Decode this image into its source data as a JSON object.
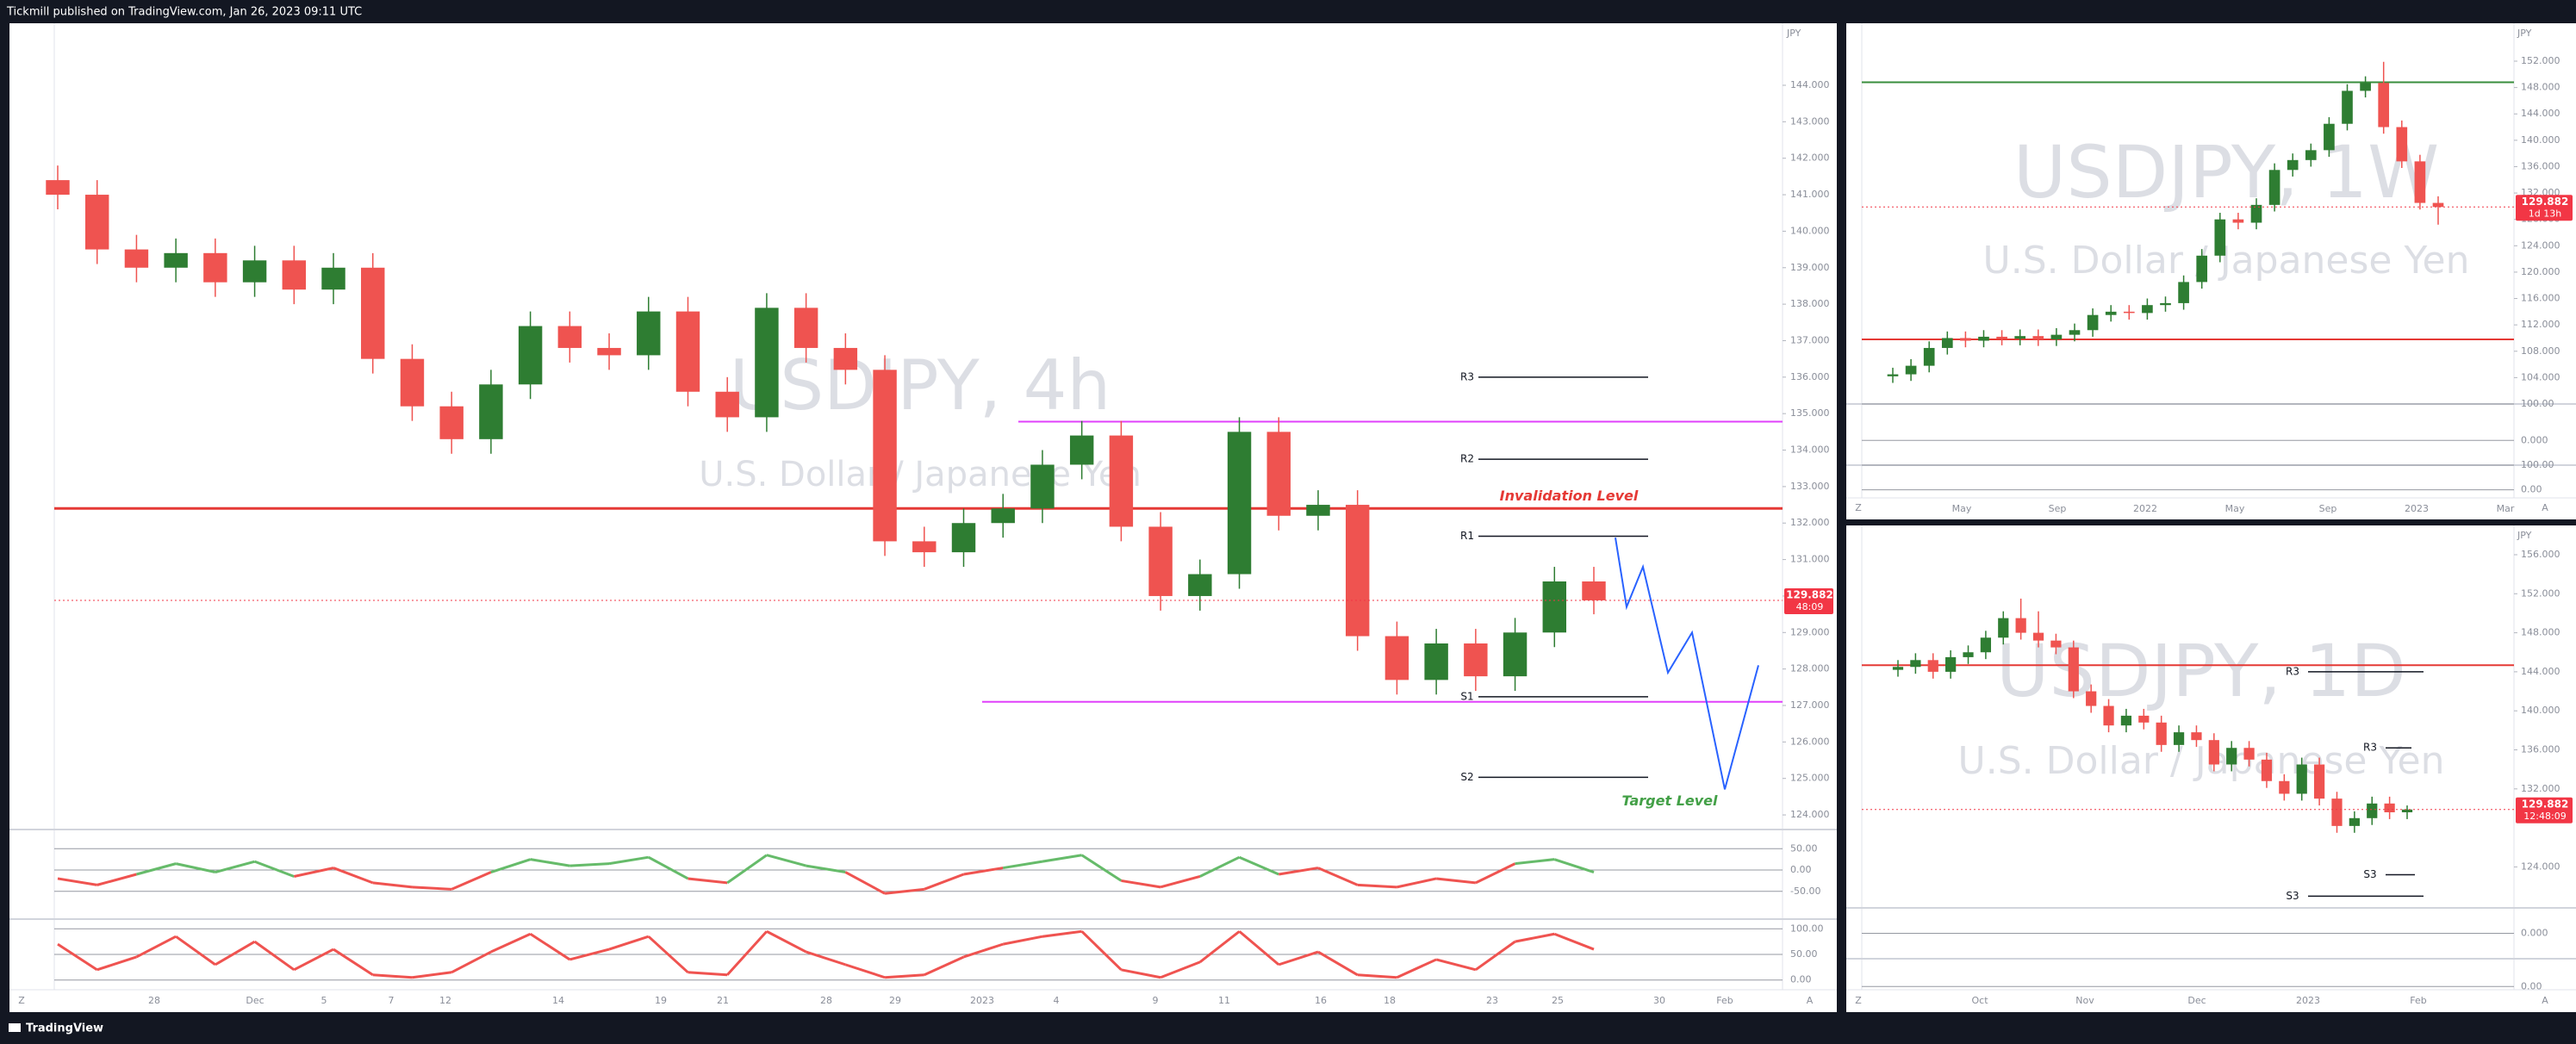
{
  "top_bar": "Tickmill published on TradingView.com, Jan 26, 2023 09:11 UTC",
  "bottom_bar": "TradingView",
  "chart_data": [
    {
      "type": "candlestick",
      "title": "USDJPY, 4h",
      "subtitle": "U.S. Dollar / Japanese Yen",
      "currency": "JPY",
      "zoom_label": "Z",
      "auto_label": "A",
      "x_labels": [
        "28",
        "Dec",
        "5",
        "7",
        "12",
        "14",
        "19",
        "21",
        "28",
        "29",
        "2023",
        "4",
        "9",
        "11",
        "16",
        "18",
        "23",
        "25",
        "30",
        "Feb"
      ],
      "up_color": "#2e7d32",
      "down_color": "#ef5350",
      "open": [
        141.4,
        141.0,
        139.5,
        139.0,
        139.4,
        138.6,
        139.2,
        138.4,
        139.0,
        136.5,
        135.2,
        134.3,
        135.8,
        137.4,
        136.8,
        136.6,
        137.8,
        135.6,
        134.9,
        137.9,
        136.8,
        136.2,
        131.5,
        131.2,
        132.0,
        132.4,
        133.6,
        134.4,
        131.9,
        130.0,
        130.6,
        134.5,
        132.2,
        132.5,
        128.9,
        127.7,
        128.7,
        127.8,
        129.0,
        130.4
      ],
      "high": [
        141.8,
        141.4,
        139.9,
        139.8,
        139.8,
        139.6,
        139.6,
        139.4,
        139.4,
        136.9,
        135.6,
        136.2,
        137.8,
        137.8,
        137.2,
        138.2,
        138.2,
        136.0,
        138.3,
        138.3,
        137.2,
        136.6,
        131.9,
        132.4,
        132.8,
        134.0,
        134.8,
        134.8,
        132.3,
        131.0,
        134.9,
        134.9,
        132.9,
        132.9,
        129.3,
        129.1,
        129.1,
        129.4,
        130.8,
        130.8
      ],
      "low": [
        140.6,
        139.1,
        138.6,
        138.6,
        138.2,
        138.2,
        138.0,
        138.0,
        136.1,
        134.8,
        133.9,
        133.9,
        135.4,
        136.4,
        136.2,
        136.2,
        135.2,
        134.5,
        134.5,
        136.4,
        135.8,
        131.1,
        130.8,
        130.8,
        131.6,
        132.0,
        133.2,
        131.5,
        129.6,
        129.6,
        130.2,
        131.8,
        131.8,
        128.5,
        127.3,
        127.3,
        127.4,
        127.4,
        128.6,
        129.5
      ],
      "close": [
        141.0,
        139.5,
        139.0,
        139.4,
        138.6,
        139.2,
        138.4,
        139.0,
        136.5,
        135.2,
        134.3,
        135.8,
        137.4,
        136.8,
        136.6,
        137.8,
        135.6,
        134.9,
        137.9,
        136.8,
        136.2,
        131.5,
        131.2,
        132.0,
        132.4,
        133.6,
        134.4,
        131.9,
        130.0,
        130.6,
        134.5,
        132.2,
        132.5,
        128.9,
        127.7,
        128.7,
        127.8,
        129.0,
        130.4,
        129.882
      ],
      "ylim": [
        123.6,
        145.7
      ],
      "yticks": [
        {
          "value": 124,
          "label": "124.000"
        },
        {
          "value": 125,
          "label": "125.000"
        },
        {
          "value": 126,
          "label": "126.000"
        },
        {
          "value": 127,
          "label": "127.000"
        },
        {
          "value": 128,
          "label": "128.000"
        },
        {
          "value": 129,
          "label": "129.000"
        },
        {
          "value": 130,
          "label": "130.000"
        },
        {
          "value": 131,
          "label": "131.000"
        },
        {
          "value": 132,
          "label": "132.000"
        },
        {
          "value": 133,
          "label": "133.000"
        },
        {
          "value": 134,
          "label": "134.000"
        },
        {
          "value": 135,
          "label": "135.000"
        },
        {
          "value": 136,
          "label": "136.000"
        },
        {
          "value": 137,
          "label": "137.000"
        },
        {
          "value": 138,
          "label": "138.000"
        },
        {
          "value": 139,
          "label": "139.000"
        },
        {
          "value": 140,
          "label": "140.000"
        },
        {
          "value": 141,
          "label": "141.000"
        },
        {
          "value": 142,
          "label": "142.000"
        },
        {
          "value": 143,
          "label": "143.000"
        },
        {
          "value": 144,
          "label": "144.000"
        }
      ],
      "last_price": {
        "value": 129.882,
        "label": "129.882"
      },
      "countdown": "48:09",
      "tag_color": "#f23645",
      "pivots": [
        {
          "label": "R3",
          "value": 136.0
        },
        {
          "label": "R2",
          "value": 133.75
        },
        {
          "label": "R1",
          "value": 131.64
        },
        {
          "label": "S1",
          "value": 127.24
        },
        {
          "label": "S2",
          "value": 125.03
        }
      ],
      "invalidation": {
        "label": "Invalidation Level",
        "value": 132.4,
        "color": "#e53935"
      },
      "zones": [
        {
          "value": 134.78
        },
        {
          "value": 127.1
        }
      ],
      "zone_color": "#e040fb",
      "projection": {
        "color": "#2962ff",
        "values": [
          131.6,
          129.7,
          130.8,
          127.9,
          129.0,
          124.7,
          128.1
        ]
      },
      "target": {
        "label": "Target Level",
        "value": 124.7,
        "color": "#43a047"
      },
      "oscillator": {
        "ylim": [
          -115,
          95
        ],
        "up_color": "#66bb6a",
        "down_color": "#ef5350",
        "yticks": [
          {
            "value": 50,
            "label": "50.00"
          },
          {
            "value": 0,
            "label": "0.00"
          },
          {
            "value": -50,
            "label": "-50.00"
          }
        ],
        "values": [
          -20,
          -35,
          -10,
          15,
          -5,
          20,
          -15,
          5,
          -30,
          -40,
          -45,
          -5,
          25,
          10,
          15,
          30,
          -20,
          -30,
          35,
          10,
          -5,
          -55,
          -45,
          -10,
          5,
          20,
          35,
          -25,
          -40,
          -15,
          30,
          -10,
          5,
          -35,
          -40,
          -20,
          -30,
          15,
          25,
          -5
        ]
      },
      "stochastic": {
        "ylim": [
          -19,
          119
        ],
        "color": "#ef5350",
        "yticks": [
          {
            "value": 100,
            "label": "100.00"
          },
          {
            "value": 50,
            "label": "50.00"
          },
          {
            "value": 0,
            "label": "0.00"
          }
        ],
        "values": [
          70,
          20,
          45,
          85,
          30,
          75,
          20,
          60,
          10,
          5,
          15,
          55,
          90,
          40,
          60,
          85,
          15,
          10,
          95,
          55,
          30,
          5,
          10,
          45,
          70,
          85,
          95,
          20,
          5,
          35,
          95,
          30,
          55,
          10,
          5,
          40,
          20,
          75,
          90,
          60
        ]
      }
    },
    {
      "type": "candlestick",
      "title": "USDJPY, 1W",
      "subtitle": "U.S. Dollar / Japanese Yen",
      "currency": "JPY",
      "zoom_label": "Z",
      "auto_label": "A",
      "x_labels": [
        "May",
        "Sep",
        "2022",
        "May",
        "Sep",
        "2023",
        "Mar"
      ],
      "up_color": "#2e7d32",
      "down_color": "#ef5350",
      "open": [
        104.2,
        104.5,
        105.8,
        108.5,
        110.0,
        109.6,
        110.2,
        109.9,
        110.3,
        109.8,
        110.5,
        111.2,
        113.5,
        114.0,
        113.8,
        115.0,
        115.3,
        118.5,
        122.5,
        128.0,
        127.5,
        130.2,
        135.5,
        137.0,
        138.5,
        142.5,
        147.5,
        148.7,
        142.0,
        136.8,
        130.5
      ],
      "high": [
        105.5,
        106.8,
        109.5,
        111.0,
        111.0,
        111.2,
        111.2,
        111.3,
        111.3,
        111.5,
        112.2,
        114.5,
        115.0,
        115.0,
        116.0,
        116.3,
        119.5,
        123.5,
        129.0,
        129.0,
        131.2,
        136.5,
        138.0,
        139.5,
        143.5,
        148.5,
        149.7,
        151.9,
        143.0,
        137.8,
        131.5
      ],
      "low": [
        103.2,
        103.5,
        104.8,
        107.5,
        108.6,
        108.6,
        108.9,
        108.9,
        108.8,
        108.8,
        109.5,
        110.2,
        112.5,
        112.8,
        112.8,
        114.0,
        114.3,
        117.5,
        121.5,
        126.5,
        126.5,
        129.2,
        134.5,
        136.0,
        137.5,
        141.5,
        146.5,
        141.0,
        135.8,
        129.5,
        127.2
      ],
      "close": [
        104.5,
        105.8,
        108.5,
        110.0,
        109.6,
        110.2,
        109.9,
        110.3,
        109.8,
        110.5,
        111.2,
        113.5,
        114.0,
        113.8,
        115.0,
        115.3,
        118.5,
        122.5,
        128.0,
        127.5,
        130.2,
        135.5,
        137.0,
        138.5,
        142.5,
        147.5,
        148.7,
        142.0,
        136.8,
        130.5,
        129.882
      ],
      "ylim": [
        100,
        157.75
      ],
      "yticks": [
        {
          "value": 104,
          "label": "104.000"
        },
        {
          "value": 108,
          "label": "108.000"
        },
        {
          "value": 112,
          "label": "112.000"
        },
        {
          "value": 116,
          "label": "116.000"
        },
        {
          "value": 120,
          "label": "120.000"
        },
        {
          "value": 124,
          "label": "124.000"
        },
        {
          "value": 128,
          "label": "128.000"
        },
        {
          "value": 132,
          "label": "132.000"
        },
        {
          "value": 136,
          "label": "136.000"
        },
        {
          "value": 140,
          "label": "140.000"
        },
        {
          "value": 144,
          "label": "144.000"
        },
        {
          "value": 148,
          "label": "148.000"
        },
        {
          "value": 152,
          "label": "152.000"
        }
      ],
      "last_price": {
        "value": 129.882,
        "label": "129.882"
      },
      "countdown": "1d 13h",
      "tag_color": "#f23645",
      "levels": [
        {
          "value": 148.8,
          "color": "#388e3c"
        },
        {
          "value": 109.8,
          "color": "#e53935"
        }
      ],
      "oscillator": {
        "ylim": [
          -68,
          100
        ],
        "yticks": [
          {
            "value": 100,
            "label": "100.00"
          },
          {
            "value": 0,
            "label": "0.000"
          }
        ]
      },
      "stochastic": {
        "ylim": [
          -33,
          100
        ],
        "yticks": [
          {
            "value": 100,
            "label": "100.00"
          },
          {
            "value": 0,
            "label": "0.00"
          }
        ]
      }
    },
    {
      "type": "candlestick",
      "title": "USDJPY, 1D",
      "subtitle": "U.S. Dollar / Japanese Yen",
      "currency": "JPY",
      "zoom_label": "Z",
      "auto_label": "A",
      "x_labels": [
        "Oct",
        "Nov",
        "Dec",
        "2023",
        "Feb"
      ],
      "up_color": "#2e7d32",
      "down_color": "#ef5350",
      "open": [
        144.2,
        144.5,
        145.2,
        144.0,
        145.5,
        146.0,
        147.5,
        149.5,
        148.0,
        147.2,
        146.5,
        142.0,
        140.5,
        138.5,
        139.5,
        138.8,
        136.5,
        137.8,
        137.0,
        134.5,
        136.2,
        135.0,
        132.8,
        131.5,
        134.5,
        131.0,
        128.2,
        129.0,
        130.5,
        129.6
      ],
      "high": [
        145.2,
        145.9,
        145.9,
        146.2,
        146.7,
        148.2,
        150.2,
        151.5,
        150.2,
        147.9,
        147.2,
        142.7,
        141.2,
        140.2,
        140.2,
        139.5,
        138.5,
        138.5,
        137.7,
        136.9,
        136.9,
        135.7,
        133.5,
        135.2,
        135.2,
        131.7,
        129.7,
        131.2,
        131.2,
        130.3
      ],
      "low": [
        143.5,
        143.8,
        143.3,
        143.3,
        144.8,
        145.3,
        146.8,
        147.3,
        146.5,
        145.8,
        141.3,
        139.8,
        137.8,
        137.8,
        138.1,
        135.8,
        135.8,
        136.3,
        133.8,
        133.8,
        134.3,
        132.1,
        130.8,
        130.8,
        130.3,
        127.5,
        127.5,
        128.3,
        128.9,
        128.9
      ],
      "close": [
        144.5,
        145.2,
        144.0,
        145.5,
        146.0,
        147.5,
        149.5,
        148.0,
        147.2,
        146.5,
        142.0,
        140.5,
        138.5,
        139.5,
        138.8,
        136.5,
        137.8,
        137.0,
        134.5,
        136.2,
        135.0,
        132.8,
        131.5,
        134.5,
        131.0,
        128.2,
        129.0,
        130.5,
        129.6,
        129.882
      ],
      "ylim": [
        119.8,
        159
      ],
      "yticks": [
        {
          "value": 124,
          "label": "124.000"
        },
        {
          "value": 132,
          "label": "132.000"
        },
        {
          "value": 136,
          "label": "136.000"
        },
        {
          "value": 140,
          "label": "140.000"
        },
        {
          "value": 144,
          "label": "144.000"
        },
        {
          "value": 148,
          "label": "148.000"
        },
        {
          "value": 152,
          "label": "152.000"
        },
        {
          "value": 156,
          "label": "156.000"
        }
      ],
      "last_price": {
        "value": 129.882,
        "label": "129.882"
      },
      "countdown": "12:48:09",
      "tag_color": "#f23645",
      "levels": [
        {
          "value": 144.67,
          "color": "#e53935"
        }
      ],
      "pivots": [
        {
          "label": "R3",
          "value": 144.0
        },
        {
          "label": "R3",
          "value": 136.2
        },
        {
          "label": "S3",
          "value": 123.2
        },
        {
          "label": "S3",
          "value": 121.0
        }
      ],
      "oscillator": {
        "ylim": [
          -100,
          100
        ],
        "yticks": [
          {
            "value": 0,
            "label": "0.000"
          }
        ]
      },
      "stochastic": {
        "ylim": [
          -13,
          113
        ],
        "yticks": [
          {
            "value": 0,
            "label": "0.00"
          }
        ]
      }
    }
  ]
}
